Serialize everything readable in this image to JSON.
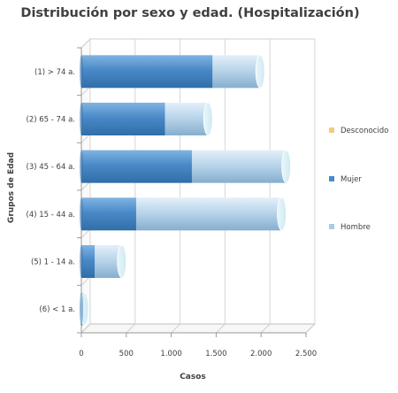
{
  "chart_data": {
    "type": "bar",
    "orientation": "horizontal",
    "stacked": true,
    "title": "Distribución por sexo y edad. (Hospitalización)",
    "xlabel": "Casos",
    "ylabel": "Grupos de Edad",
    "categories": [
      "(1) > 74 a.",
      "(2) 65 - 74 a.",
      "(3) 45 - 64 a.",
      "(4) 15 - 44 a.",
      "(5) 1 - 14 a.",
      "(6) < 1 a."
    ],
    "series": [
      {
        "name": "Mujer",
        "color": "#4a89c8",
        "values": [
          1460,
          930,
          1230,
          610,
          150,
          15
        ]
      },
      {
        "name": "Hombre",
        "color": "#a9cbe6",
        "values": [
          530,
          480,
          1050,
          1620,
          300,
          15
        ]
      },
      {
        "name": "Desconocido",
        "color": "#f2c983",
        "values": [
          0,
          0,
          0,
          0,
          0,
          0
        ]
      }
    ],
    "xlim": [
      0,
      2500
    ],
    "xticks": [
      0,
      500,
      1000,
      1500,
      2000,
      2500
    ],
    "xtick_labels": [
      "0",
      "500",
      "1.000",
      "1.500",
      "2.000",
      "2.500"
    ],
    "legend": [
      "Desconocido",
      "Mujer",
      "Hombre"
    ],
    "legend_position": "right",
    "grid": true
  }
}
